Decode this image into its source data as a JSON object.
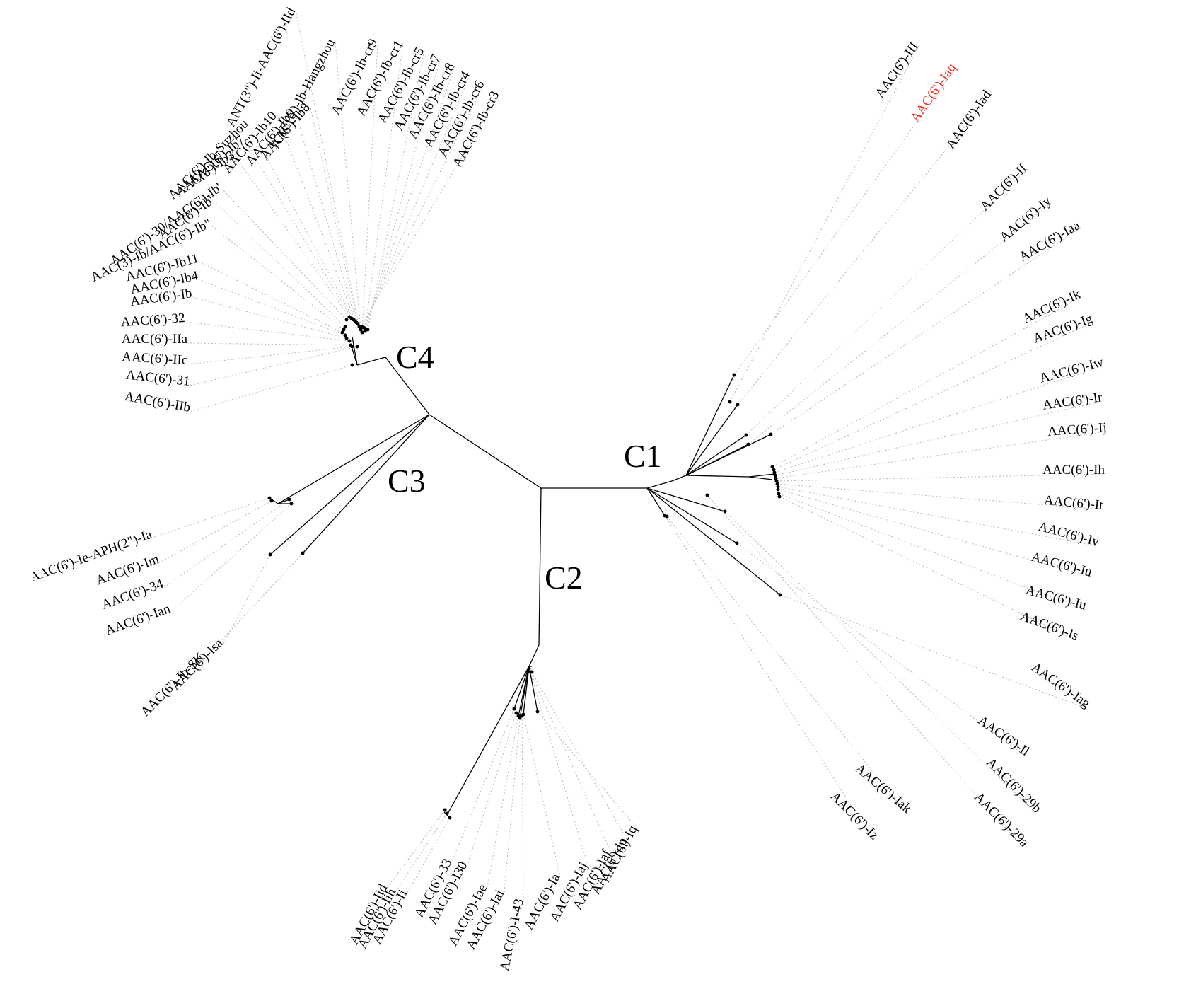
{
  "highlight_color": "#e8392d",
  "clades": {
    "c1": "C1",
    "c2": "C2",
    "c3": "C3",
    "c4": "C4"
  },
  "leaves": {
    "c4": [
      "AAC(6')-Ib-cr3",
      "AAC(6')-Ib-cr6",
      "AAC(6')-Ib-cr4",
      "AAC(6')-Ib-cr8",
      "AAC(6')-Ib-cr7",
      "AAC(6')-Ib-cr5",
      "AAC(6')-Ib-cr1",
      "AAC(6')-Ib-cr9",
      "AAC(6')-Ib-Hangzhou",
      "ANT(3\")-Ii-AAC(6')-IId",
      "AAC(6')-Ib8",
      "AAC(6')-Ib9",
      "AAC(6')-Ib10",
      "AAC(6')-Ib-Suzhou",
      "AAC(6')-Ib7",
      "AAC(6')-Ib3",
      "AAC(6')-30/AAC(6')-Ib'",
      "AAC(6')-Ib'",
      "AAC(3)-Ib/AAC(6')-Ib\"",
      "AAC(6')-Ib11",
      "AAC(6')-Ib4",
      "AAC(6')-Ib",
      "AAC(6')-32",
      "AAC(6')-IIa",
      "AAC(6')-IIc",
      "AAC(6')-31",
      "AAC(6')-IIb"
    ],
    "c3": [
      "AAC(6')-Ie-APH(2\")-Ia",
      "AAC(6')-Im",
      "AAC(6')-34",
      "AAC(6')-Ian",
      "AAC(6')-Ib-SK",
      "AAC(6')-Isa"
    ],
    "c2": [
      "AAC(6')-Iid",
      "AAC(6')-Iih",
      "AAC(6')-Ii",
      "AAC(6')-33",
      "AAC(6')-I30",
      "AAC(6')-Iae",
      "AAC(6')-Iai",
      "AAC(6')-I-43",
      "AAC(6')-Ia",
      "AAC(6')-Iaj",
      "AAC(6')-Iaf",
      "AAC(6')-Ip",
      "AAC(6')-Iq"
    ],
    "c1": [
      "AAC(6')-III",
      "AAC(6')-Iaq",
      "AAC(6')-Iad",
      "AAC(6')-If",
      "AAC(6')-Iy",
      "AAC(6')-Iaa",
      "AAC(6')-Ik",
      "AAC(6')-Ig",
      "AAC(6')-Iw",
      "AAC(6')-Ir",
      "AAC(6')-Ij",
      "AAC(6')-Ih",
      "AAC(6')-It",
      "AAC(6')-Iv",
      "AAC(6')-Iu",
      "AAC(6')-Iu",
      "AAC(6')-Is",
      "AAC(6')-Iag",
      "AAC(6')-Il",
      "AAC(6')-29b",
      "AAC(6')-29a",
      "AAC(6')-Iak",
      "AAC(6')-Iz"
    ]
  }
}
